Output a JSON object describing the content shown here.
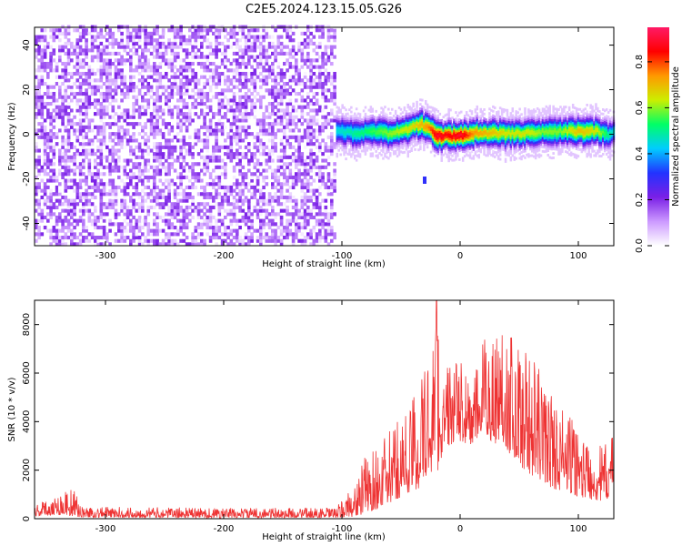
{
  "title": "C2E5.2024.123.15.05.G26",
  "chart_data": [
    {
      "type": "heatmap",
      "xlabel": "Height of straight line (km)",
      "ylabel": "Frequency (Hz)",
      "xlim": [
        -360,
        130
      ],
      "ylim": [
        -50,
        48
      ],
      "x_ticks": [
        -300,
        -200,
        -100,
        0,
        100
      ],
      "y_ticks": [
        -40,
        -20,
        0,
        20,
        40
      ],
      "colorbar": {
        "label": "Normalized spectral amplitude",
        "range": [
          0.0,
          0.95
        ],
        "ticks": [
          0.0,
          0.2,
          0.4,
          0.6,
          0.8
        ],
        "colors": [
          "#ffffff",
          "#cc99ff",
          "#7a1fe6",
          "#2233ff",
          "#00ccff",
          "#00ff66",
          "#ccee00",
          "#ff9900",
          "#ff0000",
          "#ff1a66"
        ]
      },
      "noise_region": {
        "x": [
          -360,
          -105
        ],
        "amplitude": 0.15
      },
      "signal_track": {
        "x": [
          -105,
          -90,
          -75,
          -60,
          -45,
          -35,
          -28,
          -20,
          -10,
          0,
          10,
          25,
          40,
          55,
          70,
          85,
          100,
          115,
          125,
          130
        ],
        "center_hz": [
          1,
          0,
          1,
          0,
          2,
          4,
          3,
          -1,
          -1,
          -1,
          0,
          0,
          0,
          0,
          1,
          1,
          1,
          1,
          -1,
          1
        ],
        "peak_amplitude": [
          0.45,
          0.5,
          0.55,
          0.6,
          0.65,
          0.7,
          0.75,
          0.9,
          0.85,
          0.9,
          0.75,
          0.7,
          0.65,
          0.65,
          0.6,
          0.6,
          0.7,
          0.65,
          0.5,
          0.45
        ],
        "halfwidth_hz": 6
      },
      "outlier_points": [
        {
          "x": -30,
          "y": -21
        }
      ]
    },
    {
      "type": "line",
      "xlabel": "Height of straight line (km)",
      "ylabel": "SNR (10 * v/v)",
      "xlim": [
        -360,
        130
      ],
      "ylim": [
        0,
        9000
      ],
      "x_ticks": [
        -300,
        -200,
        -100,
        0,
        100
      ],
      "y_ticks": [
        0,
        2000,
        4000,
        6000,
        8000
      ],
      "color": "#ee3333",
      "envelope": {
        "x": [
          -360,
          -345,
          -335,
          -328,
          -320,
          -200,
          -105,
          -95,
          -88,
          -80,
          -70,
          -60,
          -50,
          -40,
          -30,
          -25,
          -21,
          -18,
          -15,
          -10,
          0,
          10,
          20,
          30,
          35,
          40,
          50,
          60,
          70,
          80,
          90,
          100,
          110,
          120,
          130
        ],
        "low": [
          100,
          150,
          150,
          100,
          50,
          30,
          40,
          50,
          100,
          200,
          400,
          600,
          900,
          1000,
          1500,
          1800,
          2500,
          1800,
          2800,
          3000,
          3200,
          3000,
          3500,
          3000,
          3300,
          2800,
          2200,
          1800,
          1500,
          1200,
          1100,
          900,
          800,
          700,
          900
        ],
        "high": [
          600,
          900,
          1200,
          1300,
          500,
          450,
          450,
          1100,
          1500,
          2700,
          3000,
          3600,
          4300,
          5200,
          6500,
          7000,
          9000,
          8500,
          5500,
          6500,
          6500,
          5500,
          7500,
          8000,
          8200,
          8000,
          7400,
          6800,
          6000,
          5000,
          4500,
          3800,
          3200,
          3000,
          3500
        ]
      },
      "peak": {
        "x": -20,
        "y": 9000
      }
    }
  ]
}
